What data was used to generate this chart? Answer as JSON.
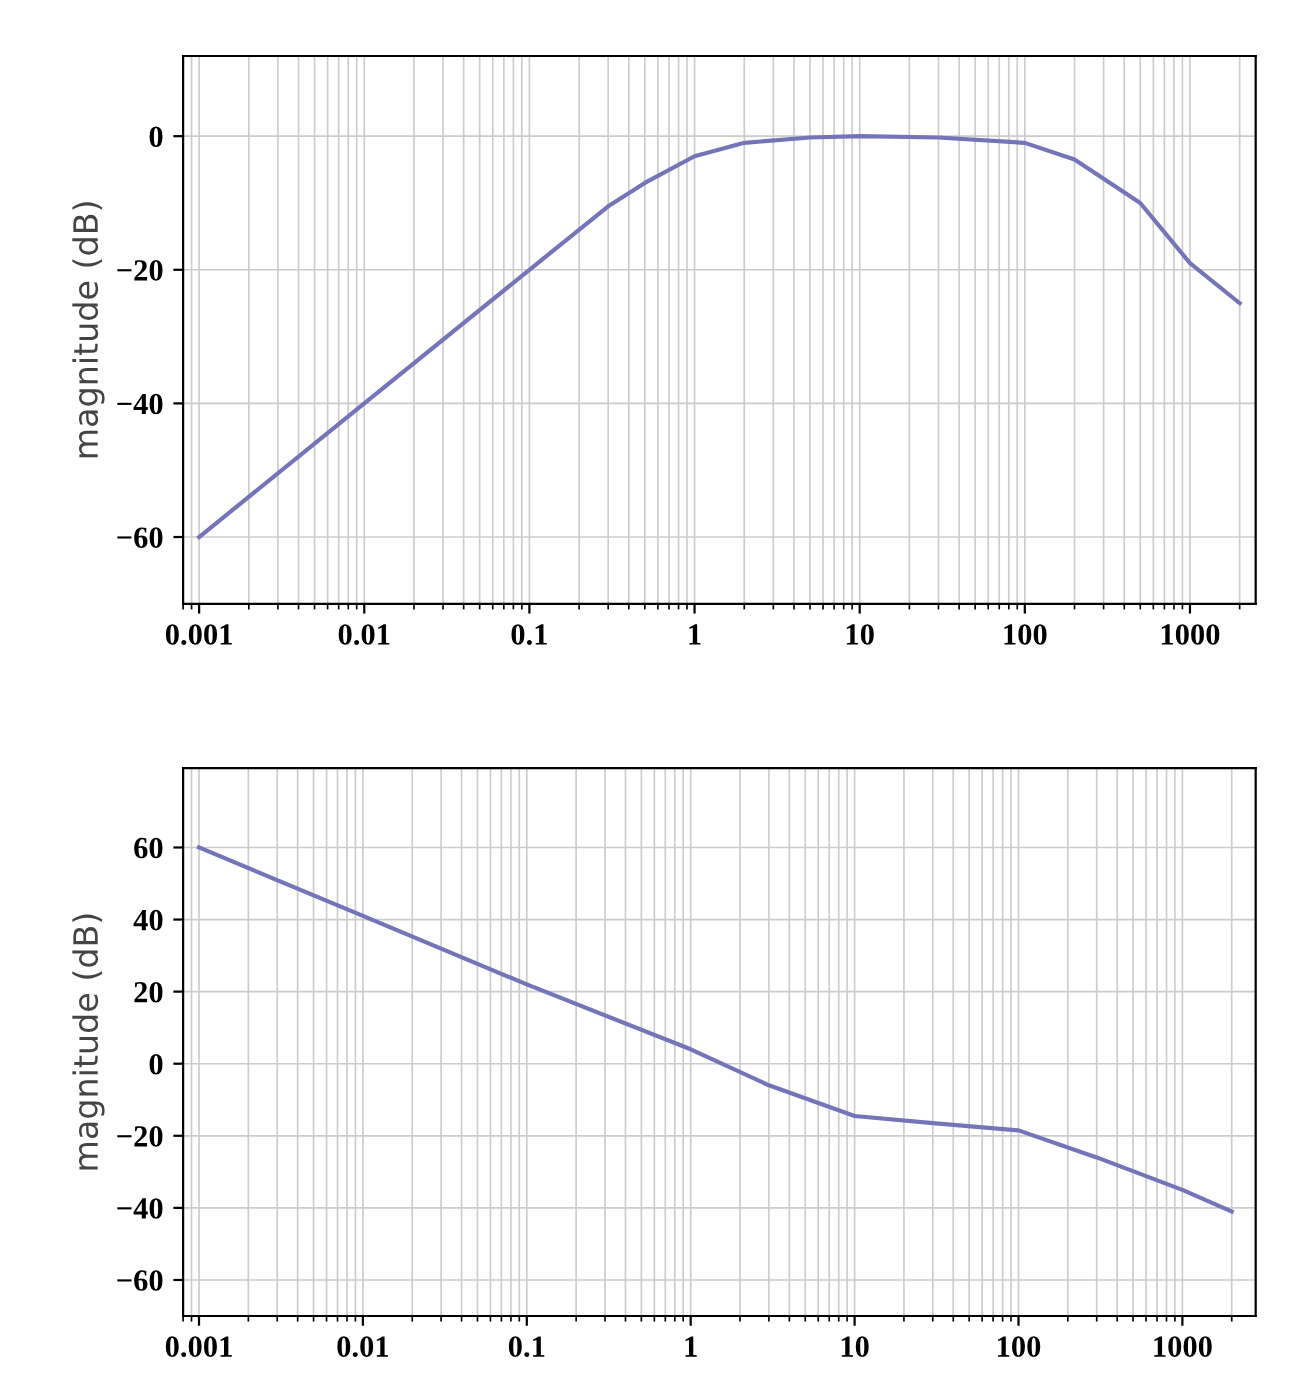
{
  "chart_data": [
    {
      "type": "line",
      "ylabel": "magnitude (dB)",
      "log": "x",
      "grid": true,
      "xlim": [
        0.0008,
        2500
      ],
      "ylim": [
        -70,
        12
      ],
      "xticks": [
        0.001,
        0.01,
        0.1,
        1,
        10,
        100,
        1000
      ],
      "yticks": [
        {
          "value": -60,
          "label": "−60"
        },
        {
          "value": -40,
          "label": "−40"
        },
        {
          "value": -20,
          "label": "−20"
        },
        0
      ],
      "series": [
        {
          "color": "#7474b8",
          "x": [
            0.001,
            0.01,
            0.1,
            0.3,
            0.5,
            1,
            2,
            5,
            10,
            30,
            100,
            200,
            500,
            1000,
            2000
          ],
          "values": [
            -60,
            -40,
            -20,
            -10.5,
            -7,
            -3,
            -1,
            -0.2,
            0,
            -0.2,
            -1,
            -3.5,
            -10,
            -19,
            -25
          ]
        }
      ]
    },
    {
      "type": "line",
      "ylabel": "magnitude (dB)",
      "log": "x",
      "grid": true,
      "xlim": [
        0.0008,
        2800
      ],
      "ylim": [
        -70,
        82
      ],
      "xticks": [
        0.001,
        0.01,
        0.1,
        1,
        10,
        100,
        1000
      ],
      "yticks": [
        {
          "value": -60,
          "label": "−60"
        },
        {
          "value": -40,
          "label": "−40"
        },
        {
          "value": -20,
          "label": "−20"
        },
        0,
        20,
        40,
        60
      ],
      "series": [
        {
          "color": "#7474b8",
          "x": [
            0.001,
            0.01,
            0.1,
            1,
            3,
            10,
            30,
            100,
            300,
            1000,
            2000
          ],
          "values": [
            60,
            41,
            22,
            4,
            -6,
            -14.5,
            -16.5,
            -18.5,
            -26,
            -35,
            -41
          ]
        }
      ]
    }
  ]
}
